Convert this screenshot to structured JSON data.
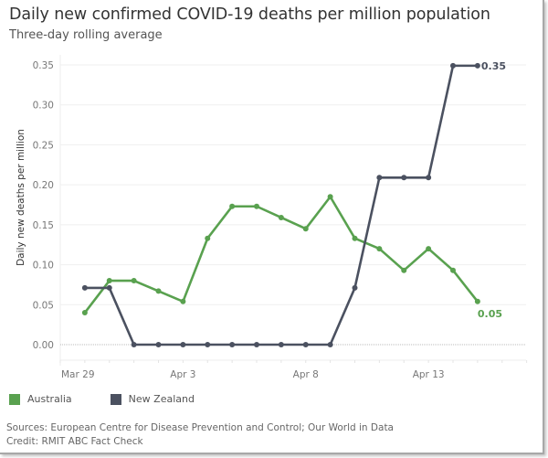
{
  "header": {
    "title": "Daily new confirmed COVID-19 deaths per million population",
    "subtitle": "Three-day rolling average"
  },
  "legend": [
    {
      "label": "Australia",
      "color": "#59a14f"
    },
    {
      "label": "New Zealand",
      "color": "#4b5160"
    }
  ],
  "footer": {
    "sources": "Sources: European Centre for Disease Prevention and Control; Our World in Data",
    "credit": "Credit: RMIT ABC Fact Check"
  },
  "chart_data": {
    "type": "line",
    "title": "Daily new confirmed COVID-19 deaths per million population",
    "subtitle": "Three-day rolling average",
    "xlabel": "",
    "ylabel": "Daily new deaths per million",
    "x": [
      "Mar 30",
      "Mar 31",
      "Apr 1",
      "Apr 2",
      "Apr 3",
      "Apr 4",
      "Apr 5",
      "Apr 6",
      "Apr 7",
      "Apr 8",
      "Apr 9",
      "Apr 10",
      "Apr 11",
      "Apr 12",
      "Apr 13",
      "Apr 14",
      "Apr 15"
    ],
    "x_axis_start": "Mar 29",
    "x_ticks": [
      {
        "label": "Mar 29",
        "day_offset": 0
      },
      {
        "label": "Apr 3",
        "day_offset": 5
      },
      {
        "label": "Apr 8",
        "day_offset": 10
      },
      {
        "label": "Apr 13",
        "day_offset": 15
      }
    ],
    "y_ticks": [
      "0.00",
      "0.05",
      "0.10",
      "0.15",
      "0.20",
      "0.25",
      "0.30",
      "0.35"
    ],
    "ylim": [
      0,
      0.35
    ],
    "grid": true,
    "legend_position": "bottom-left",
    "series": [
      {
        "name": "Australia",
        "color": "#59a14f",
        "values": [
          0.04,
          0.08,
          0.08,
          0.067,
          0.054,
          0.133,
          0.173,
          0.173,
          0.159,
          0.145,
          0.185,
          0.133,
          0.12,
          0.093,
          0.12,
          0.093,
          0.054
        ],
        "end_label": "0.05"
      },
      {
        "name": "New Zealand",
        "color": "#4b5160",
        "values": [
          0.071,
          0.071,
          0,
          0,
          0,
          0,
          0,
          0,
          0,
          0,
          0,
          0.071,
          0.209,
          0.209,
          0.209,
          0.349,
          0.349
        ],
        "end_label": "0.35"
      }
    ]
  }
}
